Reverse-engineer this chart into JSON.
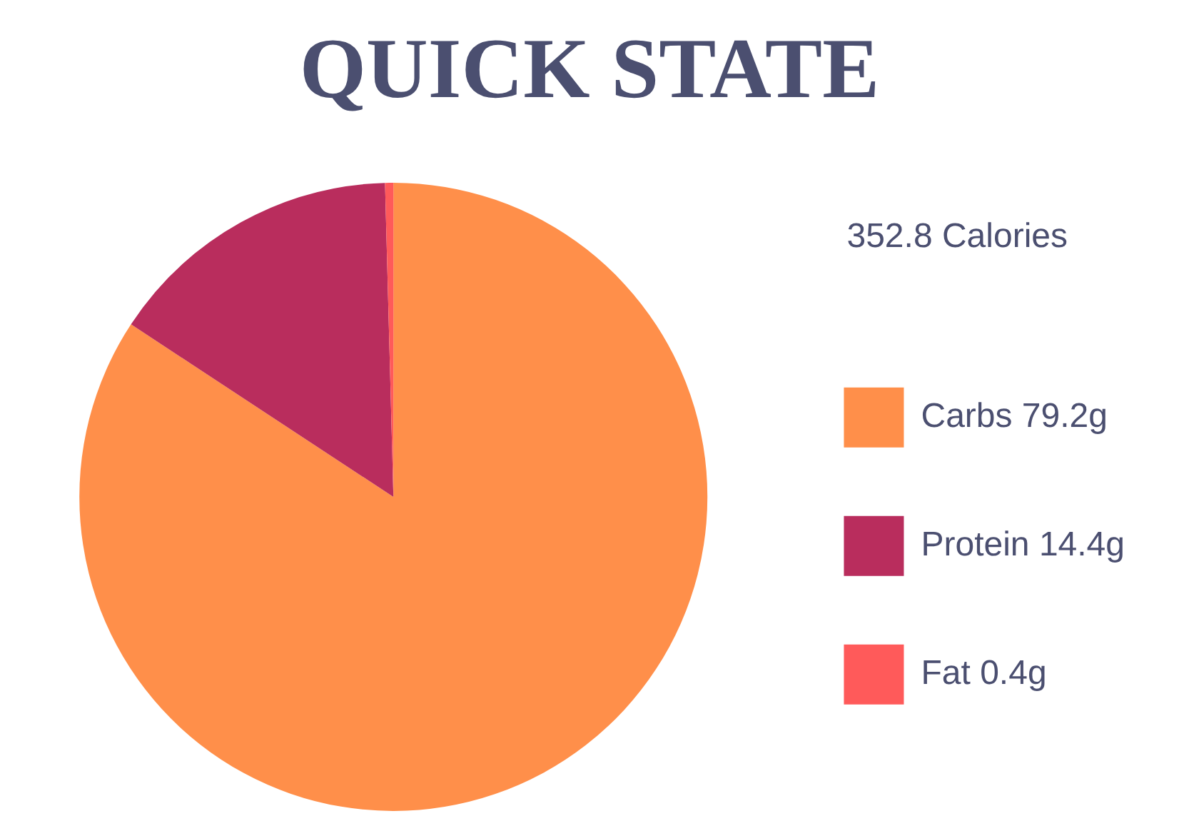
{
  "chart_data": {
    "type": "pie",
    "title": "QUICK STATE",
    "categories": [
      "Carbs",
      "Protein",
      "Fat"
    ],
    "values": [
      79.2,
      14.4,
      0.4
    ],
    "value_labels": [
      "79.2g",
      "14.4g",
      "0.4g"
    ],
    "colors": [
      "#ff8f4a",
      "#b92d5d",
      "#ff5a5a"
    ],
    "annotations": [
      "352.8 Calories"
    ],
    "legend": "right"
  }
}
